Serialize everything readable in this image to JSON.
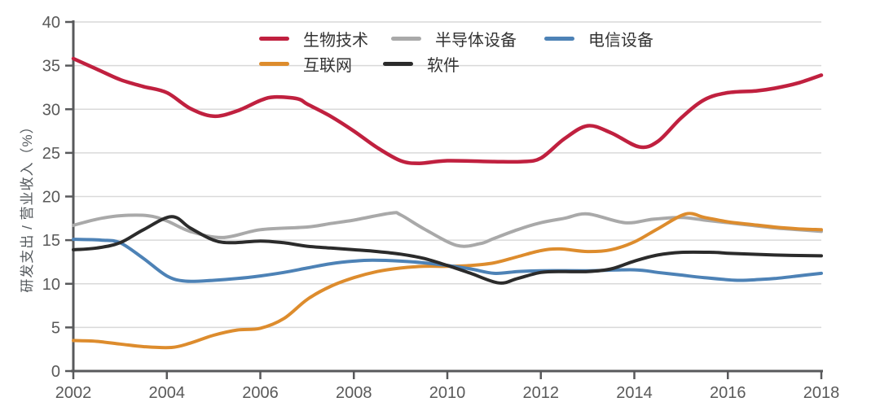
{
  "page": {
    "background": "#ffffff"
  },
  "chart_data": {
    "type": "line",
    "title": "",
    "xlabel": "",
    "ylabel": "研发支出 / 营业收入（%）",
    "xlim": [
      2002,
      2018
    ],
    "ylim": [
      0,
      40
    ],
    "x_ticks": [
      2002,
      2004,
      2006,
      2008,
      2010,
      2012,
      2014,
      2016,
      2018
    ],
    "y_ticks": [
      0,
      5,
      10,
      15,
      20,
      25,
      30,
      35,
      40
    ],
    "grid": "horizontal",
    "legend_position": "top",
    "colors": {
      "axis": "#58595b",
      "grid": "#d9d9d9",
      "tick_text": "#595959",
      "legend_text": "#333333"
    },
    "series": [
      {
        "name": "生物技术",
        "color": "#c0203f",
        "points": [
          [
            2002,
            35.8
          ],
          [
            2002.5,
            34.6
          ],
          [
            2003,
            33.4
          ],
          [
            2003.5,
            32.6
          ],
          [
            2004,
            31.9
          ],
          [
            2004.5,
            30.1
          ],
          [
            2005,
            29.2
          ],
          [
            2005.5,
            29.8
          ],
          [
            2006,
            31.0
          ],
          [
            2006.3,
            31.4
          ],
          [
            2006.8,
            31.2
          ],
          [
            2007,
            30.6
          ],
          [
            2007.5,
            29.2
          ],
          [
            2008,
            27.5
          ],
          [
            2008.5,
            25.6
          ],
          [
            2009,
            24.1
          ],
          [
            2009.4,
            23.8
          ],
          [
            2010,
            24.1
          ],
          [
            2011,
            24.0
          ],
          [
            2011.6,
            24.0
          ],
          [
            2012,
            24.4
          ],
          [
            2012.5,
            26.6
          ],
          [
            2013,
            28.1
          ],
          [
            2013.5,
            27.3
          ],
          [
            2014.1,
            25.7
          ],
          [
            2014.5,
            26.3
          ],
          [
            2015,
            29.0
          ],
          [
            2015.5,
            31.1
          ],
          [
            2016,
            31.9
          ],
          [
            2016.6,
            32.1
          ],
          [
            2017,
            32.4
          ],
          [
            2017.5,
            33.0
          ],
          [
            2018,
            33.9
          ]
        ]
      },
      {
        "name": "互联网",
        "color": "#dd8c2d",
        "points": [
          [
            2002,
            3.5
          ],
          [
            2002.5,
            3.4
          ],
          [
            2003,
            3.1
          ],
          [
            2003.5,
            2.8
          ],
          [
            2004.1,
            2.7
          ],
          [
            2004.5,
            3.2
          ],
          [
            2005,
            4.1
          ],
          [
            2005.5,
            4.7
          ],
          [
            2006,
            4.9
          ],
          [
            2006.5,
            6.0
          ],
          [
            2007,
            8.2
          ],
          [
            2007.5,
            9.7
          ],
          [
            2008,
            10.7
          ],
          [
            2008.5,
            11.4
          ],
          [
            2009,
            11.8
          ],
          [
            2009.5,
            12.0
          ],
          [
            2010,
            12.0
          ],
          [
            2010.5,
            12.1
          ],
          [
            2011,
            12.4
          ],
          [
            2011.5,
            13.1
          ],
          [
            2012,
            13.8
          ],
          [
            2012.4,
            14.0
          ],
          [
            2013,
            13.7
          ],
          [
            2013.5,
            13.9
          ],
          [
            2014,
            14.8
          ],
          [
            2014.5,
            16.3
          ],
          [
            2015.1,
            18.0
          ],
          [
            2015.5,
            17.6
          ],
          [
            2016,
            17.1
          ],
          [
            2016.5,
            16.8
          ],
          [
            2017,
            16.5
          ],
          [
            2017.5,
            16.3
          ],
          [
            2018,
            16.2
          ]
        ]
      },
      {
        "name": "半导体设备",
        "color": "#a9a9a9",
        "points": [
          [
            2002,
            16.7
          ],
          [
            2002.5,
            17.4
          ],
          [
            2003,
            17.8
          ],
          [
            2003.6,
            17.8
          ],
          [
            2004,
            17.2
          ],
          [
            2004.5,
            16.0
          ],
          [
            2005.2,
            15.3
          ],
          [
            2006,
            16.2
          ],
          [
            2007,
            16.5
          ],
          [
            2007.5,
            16.9
          ],
          [
            2008,
            17.3
          ],
          [
            2008.8,
            18.1
          ],
          [
            2009,
            17.9
          ],
          [
            2009.5,
            16.3
          ],
          [
            2010.2,
            14.4
          ],
          [
            2010.7,
            14.6
          ],
          [
            2011,
            15.2
          ],
          [
            2011.5,
            16.2
          ],
          [
            2012,
            17.0
          ],
          [
            2012.5,
            17.5
          ],
          [
            2013,
            18.0
          ],
          [
            2013.8,
            17.0
          ],
          [
            2014.4,
            17.4
          ],
          [
            2015,
            17.6
          ],
          [
            2015.5,
            17.3
          ],
          [
            2016,
            17.0
          ],
          [
            2016.5,
            16.7
          ],
          [
            2017,
            16.4
          ],
          [
            2017.5,
            16.2
          ],
          [
            2018,
            16.0
          ]
        ]
      },
      {
        "name": "软件",
        "color": "#2b2b2b",
        "points": [
          [
            2002,
            13.9
          ],
          [
            2002.5,
            14.1
          ],
          [
            2003,
            14.7
          ],
          [
            2003.5,
            16.2
          ],
          [
            2004.1,
            17.7
          ],
          [
            2004.5,
            16.4
          ],
          [
            2005,
            15.0
          ],
          [
            2005.4,
            14.7
          ],
          [
            2006,
            14.9
          ],
          [
            2006.5,
            14.7
          ],
          [
            2007,
            14.3
          ],
          [
            2007.5,
            14.1
          ],
          [
            2008,
            13.9
          ],
          [
            2008.5,
            13.7
          ],
          [
            2009,
            13.4
          ],
          [
            2009.5,
            12.9
          ],
          [
            2010,
            12.1
          ],
          [
            2010.5,
            11.2
          ],
          [
            2011.1,
            10.1
          ],
          [
            2011.5,
            10.6
          ],
          [
            2012,
            11.3
          ],
          [
            2012.5,
            11.4
          ],
          [
            2013,
            11.4
          ],
          [
            2013.5,
            11.7
          ],
          [
            2014,
            12.6
          ],
          [
            2014.5,
            13.3
          ],
          [
            2015,
            13.6
          ],
          [
            2015.7,
            13.6
          ],
          [
            2016,
            13.5
          ],
          [
            2017,
            13.3
          ],
          [
            2018,
            13.2
          ]
        ]
      },
      {
        "name": "电信设备",
        "color": "#4d82b6",
        "points": [
          [
            2002,
            15.1
          ],
          [
            2002.6,
            15.0
          ],
          [
            2003,
            14.7
          ],
          [
            2003.5,
            12.9
          ],
          [
            2004,
            10.9
          ],
          [
            2004.4,
            10.3
          ],
          [
            2005,
            10.4
          ],
          [
            2005.5,
            10.6
          ],
          [
            2006,
            10.9
          ],
          [
            2006.5,
            11.3
          ],
          [
            2007,
            11.8
          ],
          [
            2007.5,
            12.3
          ],
          [
            2008,
            12.6
          ],
          [
            2008.4,
            12.7
          ],
          [
            2009,
            12.6
          ],
          [
            2009.5,
            12.4
          ],
          [
            2010,
            12.1
          ],
          [
            2010.5,
            11.7
          ],
          [
            2011,
            11.2
          ],
          [
            2011.5,
            11.4
          ],
          [
            2012,
            11.5
          ],
          [
            2013,
            11.5
          ],
          [
            2014,
            11.6
          ],
          [
            2014.5,
            11.3
          ],
          [
            2015,
            11.0
          ],
          [
            2015.5,
            10.7
          ],
          [
            2016.2,
            10.4
          ],
          [
            2016.7,
            10.5
          ],
          [
            2017,
            10.6
          ],
          [
            2017.5,
            10.9
          ],
          [
            2018,
            11.2
          ]
        ]
      }
    ]
  }
}
